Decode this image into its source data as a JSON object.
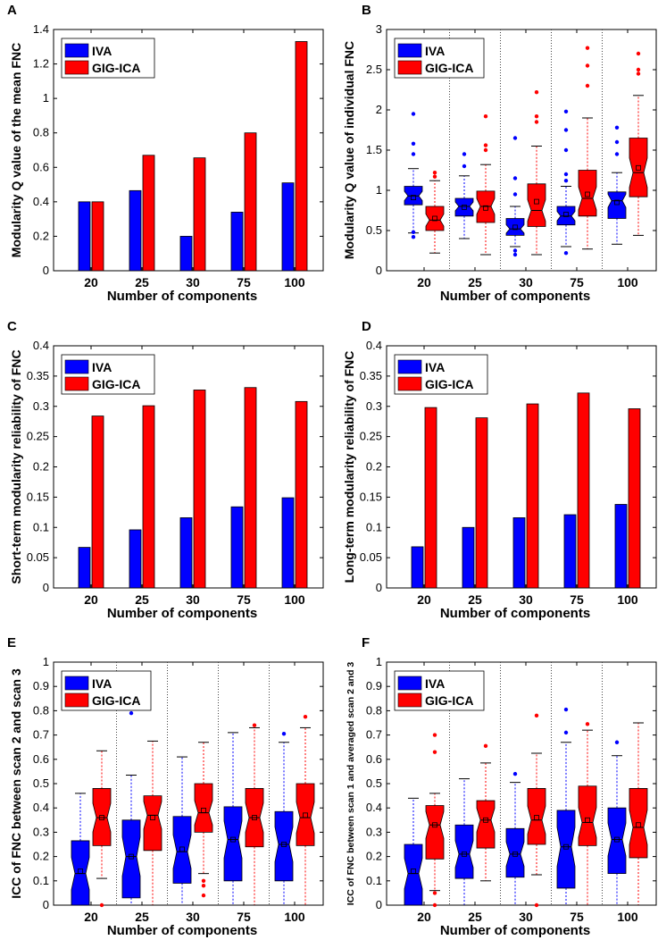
{
  "colors": {
    "iva": "#0000ff",
    "gig": "#ff0000",
    "axis": "#000000"
  },
  "chart_data": [
    {
      "panel": "A",
      "type": "bar",
      "categories": [
        "20",
        "25",
        "30",
        "75",
        "100"
      ],
      "series": [
        {
          "name": "IVA",
          "values": [
            0.4,
            0.465,
            0.2,
            0.34,
            0.51
          ]
        },
        {
          "name": "GIG-ICA",
          "values": [
            0.4,
            0.67,
            0.655,
            0.8,
            1.33
          ]
        }
      ],
      "xlabel": "Number of components",
      "ylabel": "Modularity Q value of the mean FNC",
      "ylim": [
        0,
        1.4
      ],
      "yticks": [
        0,
        0.2,
        0.4,
        0.6,
        0.8,
        1,
        1.2,
        1.4
      ],
      "ytick_labels": [
        "0",
        "0.2",
        "0.4",
        "0.6",
        "0.8",
        "1",
        "1.2",
        "1.4"
      ],
      "legend": [
        "IVA",
        "GIG-ICA"
      ],
      "legend_position": "top-left"
    },
    {
      "panel": "B",
      "type": "box",
      "categories": [
        "20",
        "25",
        "30",
        "75",
        "100"
      ],
      "series": [
        {
          "name": "IVA",
          "boxes": [
            {
              "min": 0.47,
              "q1": 0.82,
              "med": 0.93,
              "q3": 1.05,
              "max": 1.27,
              "mean": 0.91,
              "outliers": [
                1.95,
                1.58,
                1.45,
                0.42,
                0.48
              ]
            },
            {
              "min": 0.4,
              "q1": 0.68,
              "med": 0.8,
              "q3": 0.9,
              "max": 1.18,
              "mean": 0.79,
              "outliers": [
                1.45,
                1.3
              ]
            },
            {
              "min": 0.3,
              "q1": 0.44,
              "med": 0.52,
              "q3": 0.65,
              "max": 0.8,
              "mean": 0.54,
              "outliers": [
                1.65,
                1.15,
                0.95,
                0.2,
                0.25
              ]
            },
            {
              "min": 0.3,
              "q1": 0.57,
              "med": 0.68,
              "q3": 0.8,
              "max": 1.05,
              "mean": 0.7,
              "outliers": [
                1.98,
                1.75,
                1.5,
                1.2,
                1.12,
                0.22
              ]
            },
            {
              "min": 0.33,
              "q1": 0.65,
              "med": 0.87,
              "q3": 0.98,
              "max": 1.22,
              "mean": 0.85,
              "outliers": [
                1.78,
                1.6,
                1.45
              ]
            }
          ]
        },
        {
          "name": "GIG-ICA",
          "boxes": [
            {
              "min": 0.22,
              "q1": 0.5,
              "med": 0.63,
              "q3": 0.8,
              "max": 1.12,
              "mean": 0.65,
              "outliers": [
                1.22,
                1.17
              ]
            },
            {
              "min": 0.2,
              "q1": 0.6,
              "med": 0.8,
              "q3": 0.99,
              "max": 1.32,
              "mean": 0.78,
              "outliers": [
                1.92,
                1.56,
                1.5
              ]
            },
            {
              "min": 0.2,
              "q1": 0.55,
              "med": 0.75,
              "q3": 1.08,
              "max": 1.55,
              "mean": 0.86,
              "outliers": [
                2.22,
                1.92,
                1.85
              ]
            },
            {
              "min": 0.27,
              "q1": 0.68,
              "med": 0.9,
              "q3": 1.25,
              "max": 1.9,
              "mean": 0.95,
              "outliers": [
                2.77,
                2.55,
                2.3
              ]
            },
            {
              "min": 0.44,
              "q1": 0.92,
              "med": 1.22,
              "q3": 1.65,
              "max": 2.18,
              "mean": 1.28,
              "outliers": [
                2.7,
                2.5,
                2.45
              ]
            }
          ]
        }
      ],
      "xlabel": "Number of components",
      "ylabel": "Modularity Q value of individual FNC",
      "ylim": [
        0,
        3
      ],
      "yticks": [
        0,
        0.5,
        1,
        1.5,
        2,
        2.5,
        3
      ],
      "ytick_labels": [
        "0",
        "0.5",
        "1",
        "1.5",
        "2",
        "2.5",
        "3"
      ],
      "legend": [
        "IVA",
        "GIG-ICA"
      ],
      "legend_position": "top-left"
    },
    {
      "panel": "C",
      "type": "bar",
      "categories": [
        "20",
        "25",
        "30",
        "75",
        "100"
      ],
      "series": [
        {
          "name": "IVA",
          "values": [
            0.067,
            0.096,
            0.116,
            0.134,
            0.149
          ]
        },
        {
          "name": "GIG-ICA",
          "values": [
            0.284,
            0.301,
            0.327,
            0.331,
            0.308
          ]
        }
      ],
      "xlabel": "Number of components",
      "ylabel": "Short-term modularity reliability of FNC",
      "ylim": [
        0,
        0.4
      ],
      "yticks": [
        0,
        0.05,
        0.1,
        0.15,
        0.2,
        0.25,
        0.3,
        0.35,
        0.4
      ],
      "ytick_labels": [
        "0",
        "0.05",
        "0.1",
        "0.15",
        "0.2",
        "0.25",
        "0.3",
        "0.35",
        "0.4"
      ],
      "legend": [
        "IVA",
        "GIG-ICA"
      ],
      "legend_position": "top-left"
    },
    {
      "panel": "D",
      "type": "bar",
      "categories": [
        "20",
        "25",
        "30",
        "75",
        "100"
      ],
      "series": [
        {
          "name": "IVA",
          "values": [
            0.068,
            0.1,
            0.116,
            0.121,
            0.138
          ]
        },
        {
          "name": "GIG-ICA",
          "values": [
            0.298,
            0.281,
            0.304,
            0.322,
            0.296
          ]
        }
      ],
      "xlabel": "Number of components",
      "ylabel": "Long-term modularity reliability of FNC",
      "ylim": [
        0,
        0.4
      ],
      "yticks": [
        0,
        0.05,
        0.1,
        0.15,
        0.2,
        0.25,
        0.3,
        0.35,
        0.4
      ],
      "ytick_labels": [
        "0",
        "0.05",
        "0.1",
        "0.15",
        "0.2",
        "0.25",
        "0.3",
        "0.35",
        "0.4"
      ],
      "legend": [
        "IVA",
        "GIG-ICA"
      ],
      "legend_position": "top-left"
    },
    {
      "panel": "E",
      "type": "box",
      "categories": [
        "20",
        "25",
        "30",
        "75",
        "100"
      ],
      "series": [
        {
          "name": "IVA",
          "boxes": [
            {
              "min": 0.0,
              "q1": 0.0,
              "med": 0.13,
              "q3": 0.265,
              "max": 0.46,
              "mean": 0.14,
              "outliers": []
            },
            {
              "min": 0.0,
              "q1": 0.03,
              "med": 0.2,
              "q3": 0.35,
              "max": 0.535,
              "mean": 0.2,
              "outliers": [
                0.79
              ]
            },
            {
              "min": 0.0,
              "q1": 0.09,
              "med": 0.22,
              "q3": 0.365,
              "max": 0.61,
              "mean": 0.23,
              "outliers": []
            },
            {
              "min": 0.0,
              "q1": 0.1,
              "med": 0.27,
              "q3": 0.405,
              "max": 0.71,
              "mean": 0.27,
              "outliers": []
            },
            {
              "min": 0.0,
              "q1": 0.1,
              "med": 0.25,
              "q3": 0.385,
              "max": 0.67,
              "mean": 0.25,
              "outliers": [
                0.705
              ]
            }
          ]
        },
        {
          "name": "GIG-ICA",
          "boxes": [
            {
              "min": 0.11,
              "q1": 0.245,
              "med": 0.36,
              "q3": 0.48,
              "max": 0.635,
              "mean": 0.36,
              "outliers": [
                0.0
              ]
            },
            {
              "min": 0.0,
              "q1": 0.225,
              "med": 0.37,
              "q3": 0.45,
              "max": 0.675,
              "mean": 0.36,
              "outliers": []
            },
            {
              "min": 0.13,
              "q1": 0.3,
              "med": 0.38,
              "q3": 0.5,
              "max": 0.67,
              "mean": 0.39,
              "outliers": [
                0.1,
                0.08,
                0.04
              ]
            },
            {
              "min": 0.0,
              "q1": 0.24,
              "med": 0.36,
              "q3": 0.48,
              "max": 0.73,
              "mean": 0.36,
              "outliers": [
                0.74
              ]
            },
            {
              "min": 0.0,
              "q1": 0.245,
              "med": 0.36,
              "q3": 0.5,
              "max": 0.73,
              "mean": 0.37,
              "outliers": [
                0.775
              ]
            }
          ]
        }
      ],
      "xlabel": "Number of components",
      "ylabel": "ICC of FNC between scan 2 and scan 3",
      "ylim": [
        0,
        1
      ],
      "yticks": [
        0,
        0.1,
        0.2,
        0.3,
        0.4,
        0.5,
        0.6,
        0.7,
        0.8,
        0.9,
        1
      ],
      "ytick_labels": [
        "0",
        "0.1",
        "0.2",
        "0.3",
        "0.4",
        "0.5",
        "0.6",
        "0.7",
        "0.8",
        "0.9",
        "1"
      ],
      "legend": [
        "IVA",
        "GIG-ICA"
      ],
      "legend_position": "top-left"
    },
    {
      "panel": "F",
      "type": "box",
      "categories": [
        "20",
        "25",
        "30",
        "75",
        "100"
      ],
      "series": [
        {
          "name": "IVA",
          "boxes": [
            {
              "min": 0.0,
              "q1": 0.0,
              "med": 0.13,
              "q3": 0.25,
              "max": 0.44,
              "mean": 0.14,
              "outliers": []
            },
            {
              "min": 0.0,
              "q1": 0.11,
              "med": 0.21,
              "q3": 0.33,
              "max": 0.52,
              "mean": 0.21,
              "outliers": []
            },
            {
              "min": 0.0,
              "q1": 0.115,
              "med": 0.21,
              "q3": 0.315,
              "max": 0.505,
              "mean": 0.21,
              "outliers": [
                0.54
              ]
            },
            {
              "min": 0.0,
              "q1": 0.07,
              "med": 0.24,
              "q3": 0.39,
              "max": 0.67,
              "mean": 0.24,
              "outliers": [
                0.805,
                0.71
              ]
            },
            {
              "min": 0.0,
              "q1": 0.13,
              "med": 0.27,
              "q3": 0.4,
              "max": 0.615,
              "mean": 0.27,
              "outliers": [
                0.67
              ]
            }
          ]
        },
        {
          "name": "GIG-ICA",
          "boxes": [
            {
              "min": 0.06,
              "q1": 0.19,
              "med": 0.33,
              "q3": 0.41,
              "max": 0.46,
              "mean": 0.33,
              "outliers": [
                0.7,
                0.63,
                0.05,
                0.0
              ]
            },
            {
              "min": 0.1,
              "q1": 0.235,
              "med": 0.35,
              "q3": 0.43,
              "max": 0.585,
              "mean": 0.35,
              "outliers": [
                0.655
              ]
            },
            {
              "min": 0.125,
              "q1": 0.25,
              "med": 0.35,
              "q3": 0.48,
              "max": 0.625,
              "mean": 0.36,
              "outliers": [
                0.78,
                0.0
              ]
            },
            {
              "min": 0.0,
              "q1": 0.245,
              "med": 0.34,
              "q3": 0.49,
              "max": 0.72,
              "mean": 0.35,
              "outliers": [
                0.745
              ]
            },
            {
              "min": 0.0,
              "q1": 0.195,
              "med": 0.32,
              "q3": 0.48,
              "max": 0.75,
              "mean": 0.33,
              "outliers": []
            }
          ]
        }
      ],
      "xlabel": "Number of components",
      "ylabel": "ICC of FNC between scan 1 and averaged scan 2 and 3",
      "ylim": [
        0,
        1
      ],
      "yticks": [
        0,
        0.1,
        0.2,
        0.3,
        0.4,
        0.5,
        0.6,
        0.7,
        0.8,
        0.9,
        1
      ],
      "ytick_labels": [
        "0",
        "0.1",
        "0.2",
        "0.3",
        "0.4",
        "0.5",
        "0.6",
        "0.7",
        "0.8",
        "0.9",
        "1"
      ],
      "legend": [
        "IVA",
        "GIG-ICA"
      ],
      "legend_position": "top-left"
    }
  ]
}
